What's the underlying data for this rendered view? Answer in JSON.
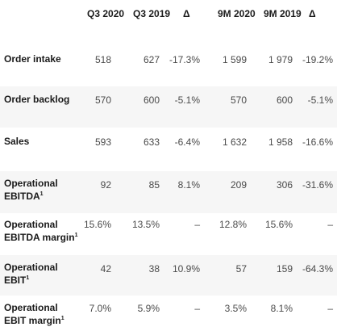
{
  "headers": {
    "q3_2020": "Q3 2020",
    "q3_2019": "Q3 2019",
    "delta_q": "Δ",
    "m9_2020": "9M 2020",
    "m9_2019": "9M 2019",
    "delta_m": "Δ"
  },
  "rows": [
    {
      "label_line1": "Order intake",
      "label_line2": "",
      "footnote": "",
      "q3_2020": "518",
      "q3_2019": "627",
      "delta_q": "-17.3%",
      "m9_2020": "1 599",
      "m9_2019": "1 979",
      "delta_m": "-19.2%"
    },
    {
      "label_line1": "Order backlog",
      "label_line2": "",
      "footnote": "",
      "q3_2020": "570",
      "q3_2019": "600",
      "delta_q": "-5.1%",
      "m9_2020": "570",
      "m9_2019": "600",
      "delta_m": "-5.1%"
    },
    {
      "label_line1": "Sales",
      "label_line2": "",
      "footnote": "",
      "q3_2020": "593",
      "q3_2019": "633",
      "delta_q": "-6.4%",
      "m9_2020": "1 632",
      "m9_2019": "1 958",
      "delta_m": "-16.6%"
    },
    {
      "label_line1": "Operational",
      "label_line2": "EBITDA",
      "footnote": "1",
      "q3_2020": "92",
      "q3_2019": "85",
      "delta_q": "8.1%",
      "m9_2020": "209",
      "m9_2019": "306",
      "delta_m": "-31.6%"
    },
    {
      "label_line1": "Operational",
      "label_line2": "EBITDA margin",
      "footnote": "1",
      "q3_2020": "15.6%",
      "q3_2019": "13.5%",
      "delta_q": "–",
      "m9_2020": "12.8%",
      "m9_2019": "15.6%",
      "delta_m": "–"
    },
    {
      "label_line1": "Operational",
      "label_line2": "EBIT",
      "footnote": "1",
      "q3_2020": "42",
      "q3_2019": "38",
      "delta_q": "10.9%",
      "m9_2020": "57",
      "m9_2019": "159",
      "delta_m": "-64.3%"
    },
    {
      "label_line1": "Operational",
      "label_line2": "EBIT margin",
      "footnote": "1",
      "q3_2020": "7.0%",
      "q3_2019": "5.9%",
      "delta_q": "–",
      "m9_2020": "3.5%",
      "m9_2019": "8.1%",
      "delta_m": "–"
    }
  ]
}
